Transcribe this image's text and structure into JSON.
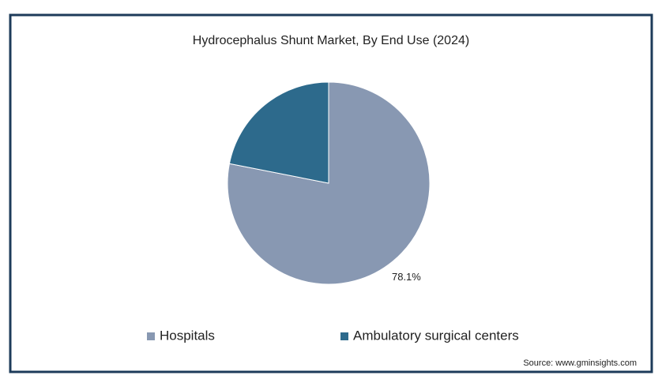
{
  "chart_data": {
    "type": "pie",
    "title": "Hydrocephalus Shunt Market, By End Use (2024)",
    "categories": [
      "Hospitals",
      "Ambulatory surgical centers"
    ],
    "values": [
      78.1,
      21.9
    ],
    "value_labels": [
      "78.1%",
      null
    ],
    "colors": [
      "#8898b2",
      "#2d6a8c"
    ],
    "source": "Source: www.gminsights.com"
  }
}
